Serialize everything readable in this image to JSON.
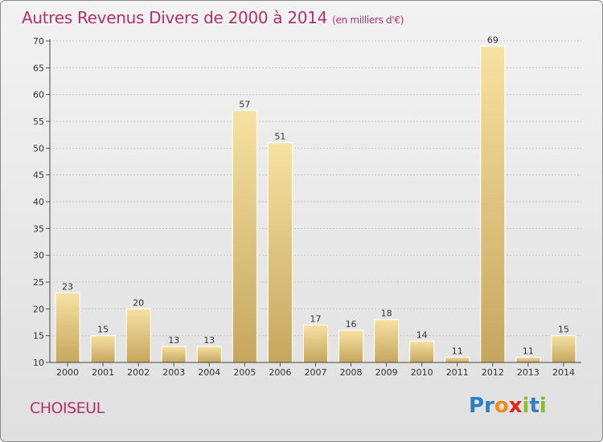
{
  "title": "Autres Revenus Divers de 2000 à 2014",
  "title_unit": "(en milliers d'€)",
  "commune": "CHOISEUL",
  "logo": {
    "text": "Proxiti",
    "colors": [
      "#2b7fc4",
      "#2b7fc4",
      "#f08a1c",
      "#e0261b",
      "#8cbd2a",
      "#2b7fc4",
      "#8cbd2a"
    ]
  },
  "colors": {
    "title": "#b5316a",
    "bar_light": "#f6dfa0",
    "bar_dark": "#c8aa62",
    "grid": "#c8c8c8"
  },
  "chart_data": {
    "type": "bar",
    "title": "Autres Revenus Divers de 2000 à 2014",
    "subtitle": "(en milliers d'€)",
    "categories": [
      "2000",
      "2001",
      "2002",
      "2003",
      "2004",
      "2005",
      "2006",
      "2007",
      "2008",
      "2009",
      "2010",
      "2011",
      "2012",
      "2013",
      "2014"
    ],
    "values": [
      23,
      15,
      20,
      13,
      13,
      57,
      51,
      17,
      16,
      18,
      14,
      11,
      69,
      11,
      15
    ],
    "ylim": [
      10,
      70
    ],
    "yticks": [
      10,
      15,
      20,
      25,
      30,
      35,
      40,
      45,
      50,
      55,
      60,
      65,
      70
    ],
    "grid": true,
    "xlabel": "",
    "ylabel": ""
  }
}
